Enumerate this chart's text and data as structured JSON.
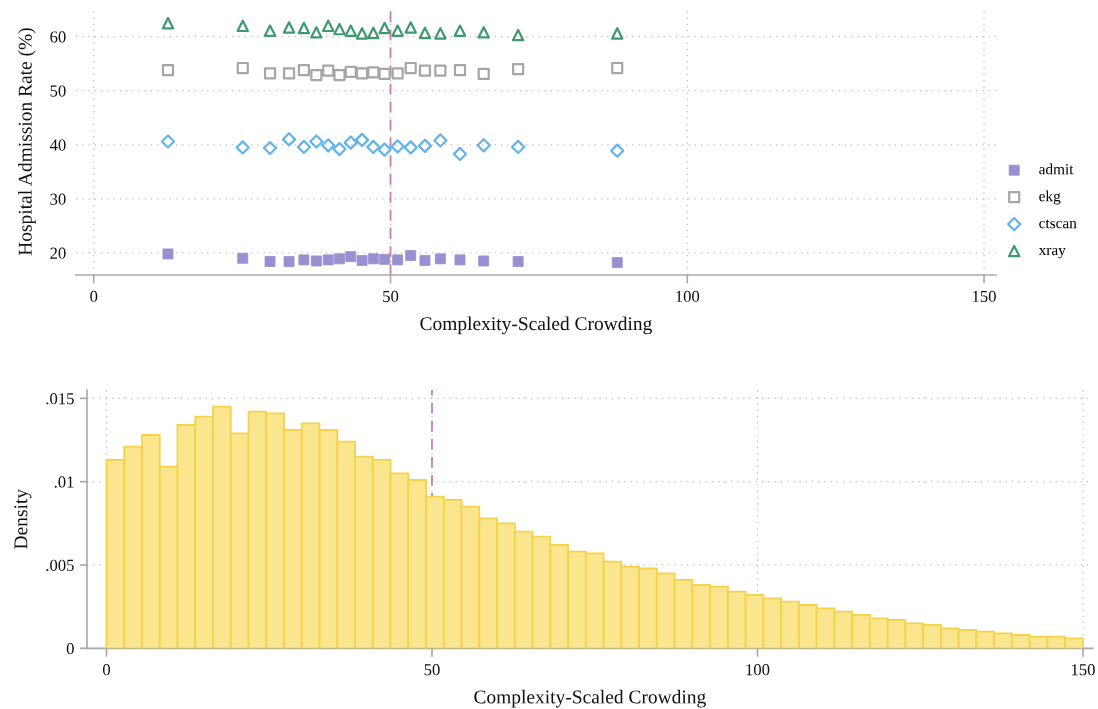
{
  "chart_data": [
    {
      "type": "scatter",
      "xlabel": "Complexity-Scaled Crowding",
      "ylabel": "Hospital Admission Rate (%)",
      "x": [
        12.5,
        25.1,
        29.7,
        32.9,
        35.4,
        37.5,
        39.5,
        41.4,
        43.3,
        45.2,
        47.1,
        49.0,
        51.2,
        53.4,
        55.8,
        58.4,
        61.7,
        65.7,
        71.5,
        88.2
      ],
      "series": [
        {
          "name": "admit",
          "color": "#9890d0",
          "marker": "square",
          "values": [
            19.8,
            19.0,
            18.4,
            18.4,
            18.7,
            18.5,
            18.7,
            18.9,
            19.3,
            18.6,
            18.9,
            18.8,
            18.7,
            19.5,
            18.6,
            18.9,
            18.7,
            18.5,
            18.4,
            18.2
          ]
        },
        {
          "name": "ekg",
          "color": "#a6a6a6",
          "marker": "square",
          "values": [
            53.8,
            54.2,
            53.2,
            53.2,
            53.8,
            52.9,
            53.7,
            52.9,
            53.5,
            53.2,
            53.4,
            53.1,
            53.2,
            54.2,
            53.7,
            53.7,
            53.8,
            53.1,
            54.0,
            54.2
          ]
        },
        {
          "name": "ctscan",
          "color": "#66b3e8",
          "marker": "diamond",
          "values": [
            40.6,
            39.5,
            39.4,
            41.0,
            39.6,
            40.6,
            39.9,
            39.2,
            40.4,
            40.9,
            39.6,
            39.1,
            39.7,
            39.5,
            39.8,
            40.8,
            38.3,
            39.9,
            39.6,
            38.9
          ]
        },
        {
          "name": "xray",
          "color": "#3f9a6f",
          "marker": "triangle",
          "values": [
            62.5,
            62.0,
            61.1,
            61.7,
            61.6,
            60.8,
            62.0,
            61.4,
            61.1,
            60.6,
            60.7,
            61.6,
            61.1,
            61.7,
            60.7,
            60.6,
            61.1,
            60.8,
            60.3,
            60.6
          ]
        }
      ],
      "xlim": [
        -3,
        152
      ],
      "ylim": [
        15.9,
        65.3
      ],
      "xticks": [
        0,
        50,
        100,
        150
      ],
      "yticks": [
        20,
        30,
        40,
        50,
        60
      ],
      "grid": true,
      "legend": "right",
      "ref_lines": [
        {
          "axis": "x",
          "value": 50,
          "color": "#c97fa8",
          "line_style": "dashed"
        }
      ]
    },
    {
      "type": "histogram",
      "xlabel": "Complexity-Scaled Crowding",
      "ylabel": "Density",
      "color": "#fbe68e",
      "bins": [
        0,
        2.727,
        5.455,
        8.182,
        10.909,
        13.636,
        16.364,
        19.091,
        21.818,
        24.545,
        27.273,
        30,
        32.727,
        35.455,
        38.182,
        40.909,
        43.636,
        46.364,
        49.091,
        51.818,
        54.545,
        57.273,
        60,
        62.727,
        65.455,
        68.182,
        70.909,
        73.636,
        76.364,
        79.091,
        81.818,
        84.545,
        87.273,
        90,
        92.727,
        95.455,
        98.182,
        100.909,
        103.636,
        106.364,
        109.091,
        111.818,
        114.545,
        117.273,
        120,
        122.727,
        125.455,
        128.182,
        130.909,
        133.636,
        136.364,
        139.091,
        141.818,
        144.545,
        147.273,
        150
      ],
      "values": [
        0.0113,
        0.0121,
        0.0128,
        0.0109,
        0.0134,
        0.0139,
        0.0145,
        0.0129,
        0.0142,
        0.0141,
        0.0131,
        0.0135,
        0.0131,
        0.0124,
        0.0115,
        0.0113,
        0.0105,
        0.0101,
        0.0091,
        0.0089,
        0.0085,
        0.0078,
        0.0075,
        0.007,
        0.0067,
        0.0062,
        0.0058,
        0.0057,
        0.0052,
        0.0049,
        0.0048,
        0.0045,
        0.0041,
        0.0038,
        0.0037,
        0.0034,
        0.0032,
        0.003,
        0.0028,
        0.0026,
        0.0024,
        0.0022,
        0.002,
        0.0018,
        0.0017,
        0.0015,
        0.0014,
        0.0012,
        0.0011,
        0.001,
        0.0009,
        0.0008,
        0.0007,
        0.0007,
        0.0006
      ],
      "xlim": [
        -3,
        151.5
      ],
      "ylim": [
        0,
        0.0155
      ],
      "xticks": [
        0,
        50,
        100,
        150
      ],
      "yticks": [
        0,
        {
          "value": 0.005,
          "label": ".005"
        },
        {
          "value": 0.01,
          "label": ".01"
        },
        {
          "value": 0.015,
          "label": ".015"
        }
      ],
      "grid": true,
      "ref_lines": [
        {
          "axis": "x",
          "value": 50,
          "color": "#c97fa8",
          "line_style": "dashed"
        }
      ]
    }
  ]
}
